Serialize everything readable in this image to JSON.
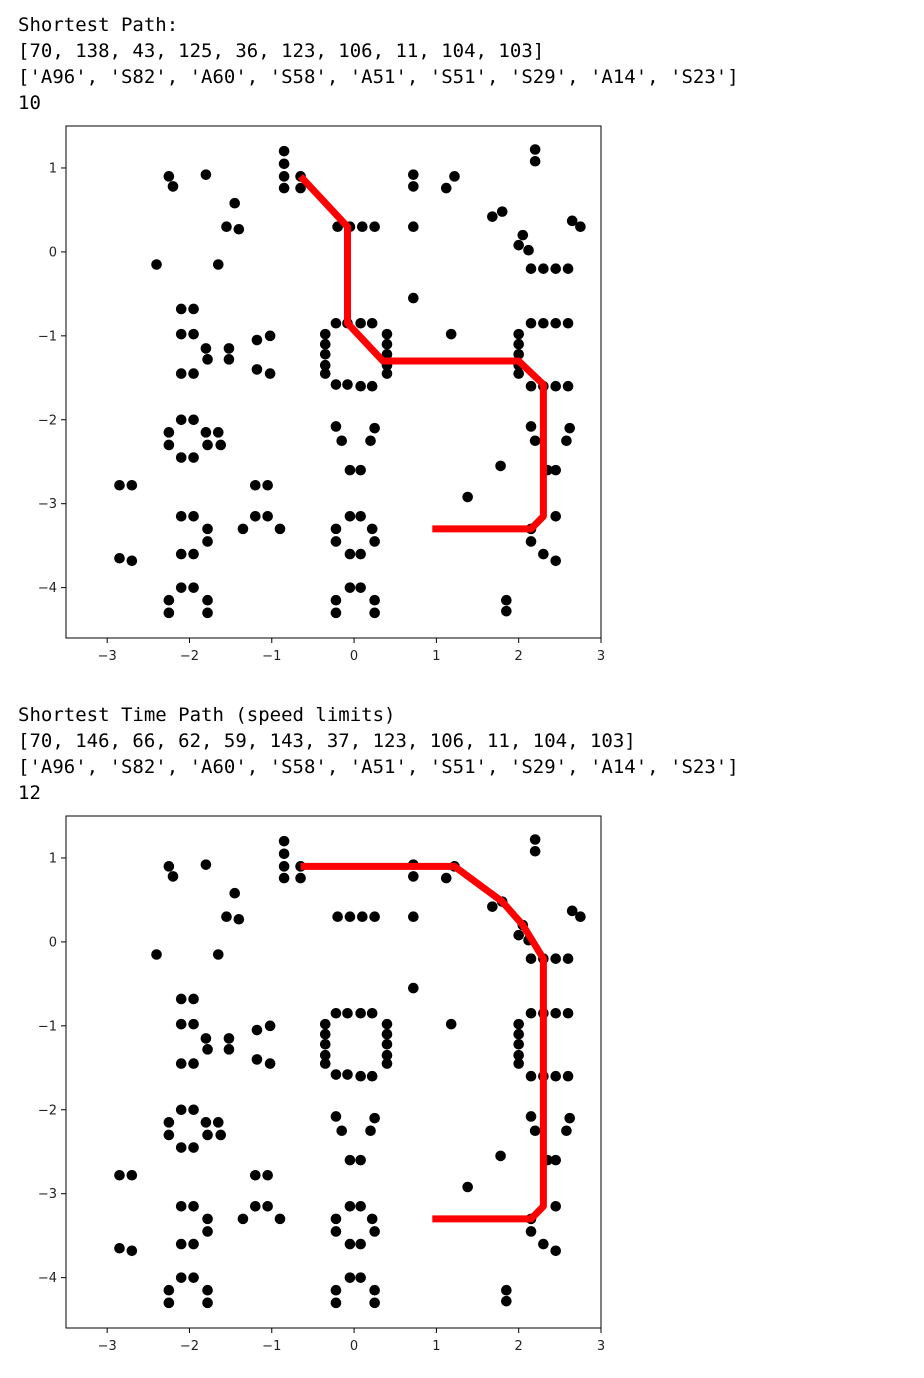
{
  "outputs": [
    {
      "heading": "Shortest Path:",
      "node_list": "[70, 138, 43, 125, 36, 123, 106, 11, 104, 103]",
      "name_list": "['A96', 'S82', 'A60', 'S58', 'A51', 'S51', 'S29', 'A14', 'S23']",
      "count": "10"
    },
    {
      "heading": "Shortest Time Path (speed limits)",
      "node_list": "[70, 146, 66, 62, 59, 143, 37, 123, 106, 11, 104, 103]",
      "name_list": "['A96', 'S82', 'A60', 'S58', 'A51', 'S51', 'S29', 'A14', 'S23']",
      "count": "12"
    }
  ],
  "chart_data": [
    {
      "type": "scatter",
      "xlim": [
        -3.5,
        3.0
      ],
      "ylim": [
        -4.6,
        1.5
      ],
      "xticks": [
        -3,
        -2,
        -1,
        0,
        1,
        2,
        3
      ],
      "yticks": [
        1,
        0,
        -1,
        -2,
        -3,
        -4
      ],
      "grid": false,
      "point_color": "#000000",
      "path_color": "#ff0000",
      "points": [
        [
          -0.85,
          1.2
        ],
        [
          -0.85,
          1.05
        ],
        [
          -0.85,
          0.9
        ],
        [
          -0.85,
          0.76
        ],
        [
          -0.65,
          0.76
        ],
        [
          -0.65,
          0.9
        ],
        [
          -2.25,
          0.9
        ],
        [
          -2.2,
          0.78
        ],
        [
          -1.8,
          0.92
        ],
        [
          -1.45,
          0.58
        ],
        [
          -1.55,
          0.3
        ],
        [
          -1.4,
          0.27
        ],
        [
          -2.4,
          -0.15
        ],
        [
          -1.65,
          -0.15
        ],
        [
          -0.2,
          0.3
        ],
        [
          -0.05,
          0.3
        ],
        [
          0.1,
          0.3
        ],
        [
          0.25,
          0.3
        ],
        [
          0.72,
          0.92
        ],
        [
          0.72,
          0.78
        ],
        [
          0.72,
          0.3
        ],
        [
          1.12,
          0.76
        ],
        [
          1.22,
          0.9
        ],
        [
          0.72,
          -0.55
        ],
        [
          1.68,
          0.42
        ],
        [
          1.8,
          0.48
        ],
        [
          2.2,
          1.22
        ],
        [
          2.2,
          1.08
        ],
        [
          2.05,
          0.2
        ],
        [
          2.0,
          0.08
        ],
        [
          2.12,
          0.02
        ],
        [
          2.15,
          -0.2
        ],
        [
          2.3,
          -0.2
        ],
        [
          2.45,
          -0.2
        ],
        [
          2.6,
          -0.2
        ],
        [
          2.65,
          0.37
        ],
        [
          2.75,
          0.3
        ],
        [
          -2.1,
          -0.68
        ],
        [
          -1.95,
          -0.68
        ],
        [
          -2.1,
          -0.98
        ],
        [
          -1.95,
          -0.98
        ],
        [
          -1.8,
          -1.15
        ],
        [
          -1.78,
          -1.28
        ],
        [
          -1.52,
          -1.15
        ],
        [
          -1.52,
          -1.28
        ],
        [
          -2.1,
          -1.45
        ],
        [
          -1.95,
          -1.45
        ],
        [
          -1.18,
          -1.05
        ],
        [
          -1.02,
          -1.0
        ],
        [
          -1.18,
          -1.4
        ],
        [
          -1.02,
          -1.45
        ],
        [
          -0.35,
          -0.98
        ],
        [
          -0.35,
          -1.1
        ],
        [
          -0.35,
          -1.22
        ],
        [
          -0.35,
          -1.35
        ],
        [
          -0.35,
          -1.45
        ],
        [
          -0.22,
          -0.85
        ],
        [
          -0.08,
          -0.85
        ],
        [
          0.08,
          -0.85
        ],
        [
          0.22,
          -0.85
        ],
        [
          0.4,
          -0.98
        ],
        [
          0.4,
          -1.1
        ],
        [
          0.4,
          -1.22
        ],
        [
          0.4,
          -1.35
        ],
        [
          0.4,
          -1.45
        ],
        [
          -0.22,
          -1.58
        ],
        [
          -0.08,
          -1.58
        ],
        [
          0.08,
          -1.6
        ],
        [
          0.22,
          -1.6
        ],
        [
          1.18,
          -0.98
        ],
        [
          2.0,
          -0.98
        ],
        [
          2.0,
          -1.1
        ],
        [
          2.0,
          -1.22
        ],
        [
          2.0,
          -1.35
        ],
        [
          2.0,
          -1.45
        ],
        [
          2.15,
          -0.85
        ],
        [
          2.3,
          -0.85
        ],
        [
          2.45,
          -0.85
        ],
        [
          2.6,
          -0.85
        ],
        [
          2.15,
          -1.6
        ],
        [
          2.3,
          -1.6
        ],
        [
          2.45,
          -1.6
        ],
        [
          2.6,
          -1.6
        ],
        [
          -2.1,
          -2.0
        ],
        [
          -1.95,
          -2.0
        ],
        [
          -2.25,
          -2.15
        ],
        [
          -2.25,
          -2.3
        ],
        [
          -2.1,
          -2.45
        ],
        [
          -1.95,
          -2.45
        ],
        [
          -1.8,
          -2.15
        ],
        [
          -1.65,
          -2.15
        ],
        [
          -1.78,
          -2.3
        ],
        [
          -1.62,
          -2.3
        ],
        [
          -0.22,
          -2.08
        ],
        [
          -0.15,
          -2.25
        ],
        [
          0.25,
          -2.1
        ],
        [
          0.2,
          -2.25
        ],
        [
          -0.05,
          -2.6
        ],
        [
          0.08,
          -2.6
        ],
        [
          2.15,
          -2.08
        ],
        [
          2.2,
          -2.25
        ],
        [
          2.62,
          -2.1
        ],
        [
          2.58,
          -2.25
        ],
        [
          2.35,
          -2.6
        ],
        [
          2.45,
          -2.6
        ],
        [
          1.78,
          -2.55
        ],
        [
          1.38,
          -2.92
        ],
        [
          -2.85,
          -2.78
        ],
        [
          -2.7,
          -2.78
        ],
        [
          -2.85,
          -3.65
        ],
        [
          -2.7,
          -3.68
        ],
        [
          -2.1,
          -3.15
        ],
        [
          -1.95,
          -3.15
        ],
        [
          -1.78,
          -3.3
        ],
        [
          -1.78,
          -3.45
        ],
        [
          -2.1,
          -3.6
        ],
        [
          -1.95,
          -3.6
        ],
        [
          -1.2,
          -2.78
        ],
        [
          -1.05,
          -2.78
        ],
        [
          -1.2,
          -3.15
        ],
        [
          -1.05,
          -3.15
        ],
        [
          -1.35,
          -3.3
        ],
        [
          -0.9,
          -3.3
        ],
        [
          -0.22,
          -3.3
        ],
        [
          -0.22,
          -3.45
        ],
        [
          -0.05,
          -3.15
        ],
        [
          0.08,
          -3.15
        ],
        [
          0.22,
          -3.3
        ],
        [
          0.25,
          -3.45
        ],
        [
          -0.05,
          -3.6
        ],
        [
          0.08,
          -3.6
        ],
        [
          2.15,
          -3.3
        ],
        [
          2.15,
          -3.45
        ],
        [
          2.45,
          -3.15
        ],
        [
          2.3,
          -3.6
        ],
        [
          2.45,
          -3.68
        ],
        [
          -2.1,
          -4.0
        ],
        [
          -1.95,
          -4.0
        ],
        [
          -2.25,
          -4.15
        ],
        [
          -2.25,
          -4.3
        ],
        [
          -1.78,
          -4.15
        ],
        [
          -1.78,
          -4.3
        ],
        [
          -0.05,
          -4.0
        ],
        [
          0.08,
          -4.0
        ],
        [
          -0.22,
          -4.15
        ],
        [
          -0.22,
          -4.3
        ],
        [
          0.25,
          -4.15
        ],
        [
          0.25,
          -4.3
        ],
        [
          1.85,
          -4.15
        ],
        [
          1.85,
          -4.28
        ]
      ],
      "path": [
        [
          -0.65,
          0.9
        ],
        [
          -0.08,
          0.3
        ],
        [
          -0.08,
          -0.85
        ],
        [
          0.35,
          -1.3
        ],
        [
          2.0,
          -1.3
        ],
        [
          2.3,
          -1.58
        ],
        [
          2.3,
          -3.15
        ],
        [
          2.15,
          -3.3
        ],
        [
          0.95,
          -3.3
        ]
      ]
    },
    {
      "type": "scatter",
      "xlim": [
        -3.5,
        3.0
      ],
      "ylim": [
        -4.6,
        1.5
      ],
      "xticks": [
        -3,
        -2,
        -1,
        0,
        1,
        2,
        3
      ],
      "yticks": [
        1,
        0,
        -1,
        -2,
        -3,
        -4
      ],
      "grid": false,
      "point_color": "#000000",
      "path_color": "#ff0000",
      "points": [
        [
          -0.85,
          1.2
        ],
        [
          -0.85,
          1.05
        ],
        [
          -0.85,
          0.9
        ],
        [
          -0.85,
          0.76
        ],
        [
          -0.65,
          0.76
        ],
        [
          -0.65,
          0.9
        ],
        [
          -2.25,
          0.9
        ],
        [
          -2.2,
          0.78
        ],
        [
          -1.8,
          0.92
        ],
        [
          -1.45,
          0.58
        ],
        [
          -1.55,
          0.3
        ],
        [
          -1.4,
          0.27
        ],
        [
          -2.4,
          -0.15
        ],
        [
          -1.65,
          -0.15
        ],
        [
          -0.2,
          0.3
        ],
        [
          -0.05,
          0.3
        ],
        [
          0.1,
          0.3
        ],
        [
          0.25,
          0.3
        ],
        [
          0.72,
          0.92
        ],
        [
          0.72,
          0.78
        ],
        [
          0.72,
          0.3
        ],
        [
          1.12,
          0.76
        ],
        [
          1.22,
          0.9
        ],
        [
          0.72,
          -0.55
        ],
        [
          1.68,
          0.42
        ],
        [
          1.8,
          0.48
        ],
        [
          2.2,
          1.22
        ],
        [
          2.2,
          1.08
        ],
        [
          2.05,
          0.2
        ],
        [
          2.0,
          0.08
        ],
        [
          2.12,
          0.02
        ],
        [
          2.15,
          -0.2
        ],
        [
          2.3,
          -0.2
        ],
        [
          2.45,
          -0.2
        ],
        [
          2.6,
          -0.2
        ],
        [
          2.65,
          0.37
        ],
        [
          2.75,
          0.3
        ],
        [
          -2.1,
          -0.68
        ],
        [
          -1.95,
          -0.68
        ],
        [
          -2.1,
          -0.98
        ],
        [
          -1.95,
          -0.98
        ],
        [
          -1.8,
          -1.15
        ],
        [
          -1.78,
          -1.28
        ],
        [
          -1.52,
          -1.15
        ],
        [
          -1.52,
          -1.28
        ],
        [
          -2.1,
          -1.45
        ],
        [
          -1.95,
          -1.45
        ],
        [
          -1.18,
          -1.05
        ],
        [
          -1.02,
          -1.0
        ],
        [
          -1.18,
          -1.4
        ],
        [
          -1.02,
          -1.45
        ],
        [
          -0.35,
          -0.98
        ],
        [
          -0.35,
          -1.1
        ],
        [
          -0.35,
          -1.22
        ],
        [
          -0.35,
          -1.35
        ],
        [
          -0.35,
          -1.45
        ],
        [
          -0.22,
          -0.85
        ],
        [
          -0.08,
          -0.85
        ],
        [
          0.08,
          -0.85
        ],
        [
          0.22,
          -0.85
        ],
        [
          0.4,
          -0.98
        ],
        [
          0.4,
          -1.1
        ],
        [
          0.4,
          -1.22
        ],
        [
          0.4,
          -1.35
        ],
        [
          0.4,
          -1.45
        ],
        [
          -0.22,
          -1.58
        ],
        [
          -0.08,
          -1.58
        ],
        [
          0.08,
          -1.6
        ],
        [
          0.22,
          -1.6
        ],
        [
          1.18,
          -0.98
        ],
        [
          2.0,
          -0.98
        ],
        [
          2.0,
          -1.1
        ],
        [
          2.0,
          -1.22
        ],
        [
          2.0,
          -1.35
        ],
        [
          2.0,
          -1.45
        ],
        [
          2.15,
          -0.85
        ],
        [
          2.3,
          -0.85
        ],
        [
          2.45,
          -0.85
        ],
        [
          2.6,
          -0.85
        ],
        [
          2.15,
          -1.6
        ],
        [
          2.3,
          -1.6
        ],
        [
          2.45,
          -1.6
        ],
        [
          2.6,
          -1.6
        ],
        [
          -2.1,
          -2.0
        ],
        [
          -1.95,
          -2.0
        ],
        [
          -2.25,
          -2.15
        ],
        [
          -2.25,
          -2.3
        ],
        [
          -2.1,
          -2.45
        ],
        [
          -1.95,
          -2.45
        ],
        [
          -1.8,
          -2.15
        ],
        [
          -1.65,
          -2.15
        ],
        [
          -1.78,
          -2.3
        ],
        [
          -1.62,
          -2.3
        ],
        [
          -0.22,
          -2.08
        ],
        [
          -0.15,
          -2.25
        ],
        [
          0.25,
          -2.1
        ],
        [
          0.2,
          -2.25
        ],
        [
          -0.05,
          -2.6
        ],
        [
          0.08,
          -2.6
        ],
        [
          2.15,
          -2.08
        ],
        [
          2.2,
          -2.25
        ],
        [
          2.62,
          -2.1
        ],
        [
          2.58,
          -2.25
        ],
        [
          2.35,
          -2.6
        ],
        [
          2.45,
          -2.6
        ],
        [
          1.78,
          -2.55
        ],
        [
          1.38,
          -2.92
        ],
        [
          -2.85,
          -2.78
        ],
        [
          -2.7,
          -2.78
        ],
        [
          -2.85,
          -3.65
        ],
        [
          -2.7,
          -3.68
        ],
        [
          -2.1,
          -3.15
        ],
        [
          -1.95,
          -3.15
        ],
        [
          -1.78,
          -3.3
        ],
        [
          -1.78,
          -3.45
        ],
        [
          -2.1,
          -3.6
        ],
        [
          -1.95,
          -3.6
        ],
        [
          -1.2,
          -2.78
        ],
        [
          -1.05,
          -2.78
        ],
        [
          -1.2,
          -3.15
        ],
        [
          -1.05,
          -3.15
        ],
        [
          -1.35,
          -3.3
        ],
        [
          -0.9,
          -3.3
        ],
        [
          -0.22,
          -3.3
        ],
        [
          -0.22,
          -3.45
        ],
        [
          -0.05,
          -3.15
        ],
        [
          0.08,
          -3.15
        ],
        [
          0.22,
          -3.3
        ],
        [
          0.25,
          -3.45
        ],
        [
          -0.05,
          -3.6
        ],
        [
          0.08,
          -3.6
        ],
        [
          2.15,
          -3.3
        ],
        [
          2.15,
          -3.45
        ],
        [
          2.45,
          -3.15
        ],
        [
          2.3,
          -3.6
        ],
        [
          2.45,
          -3.68
        ],
        [
          -2.1,
          -4.0
        ],
        [
          -1.95,
          -4.0
        ],
        [
          -2.25,
          -4.15
        ],
        [
          -2.25,
          -4.3
        ],
        [
          -1.78,
          -4.15
        ],
        [
          -1.78,
          -4.3
        ],
        [
          -0.05,
          -4.0
        ],
        [
          0.08,
          -4.0
        ],
        [
          -0.22,
          -4.15
        ],
        [
          -0.22,
          -4.3
        ],
        [
          0.25,
          -4.15
        ],
        [
          0.25,
          -4.3
        ],
        [
          1.85,
          -4.15
        ],
        [
          1.85,
          -4.28
        ]
      ],
      "path": [
        [
          -0.65,
          0.9
        ],
        [
          1.22,
          0.9
        ],
        [
          1.8,
          0.48
        ],
        [
          2.05,
          0.2
        ],
        [
          2.3,
          -0.2
        ],
        [
          2.3,
          -3.15
        ],
        [
          2.15,
          -3.3
        ],
        [
          0.95,
          -3.3
        ]
      ]
    }
  ]
}
